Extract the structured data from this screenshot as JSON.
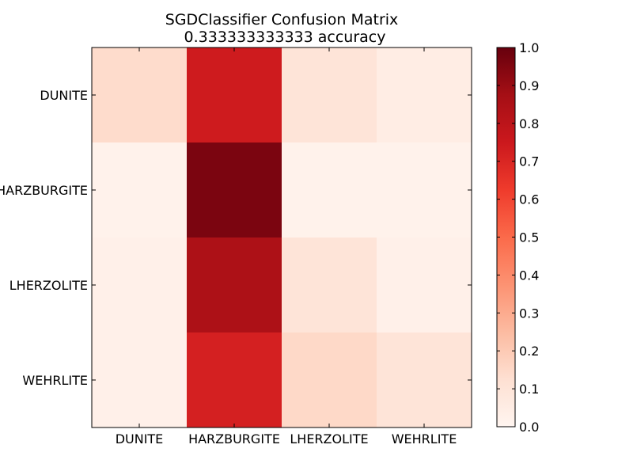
{
  "chart_data": {
    "type": "heatmap",
    "title": "SGDClassifier Confusion Matrix",
    "subtitle": "0.333333333333 accuracy",
    "row_labels": [
      "DUNITE",
      "HARZBURGITE",
      "LHERZOLITE",
      "WEHRLITE"
    ],
    "col_labels": [
      "DUNITE",
      "HARZBURGITE",
      "LHERZOLITE",
      "WEHRLITE"
    ],
    "values": [
      [
        0.14,
        0.74,
        0.1,
        0.05
      ],
      [
        0.02,
        0.96,
        0.02,
        0.02
      ],
      [
        0.03,
        0.85,
        0.1,
        0.03
      ],
      [
        0.03,
        0.72,
        0.15,
        0.1
      ]
    ],
    "colormap": "Reds",
    "colorbar": {
      "range": [
        0.0,
        1.0
      ],
      "ticks": [
        "0.0",
        "0.1",
        "0.2",
        "0.3",
        "0.4",
        "0.5",
        "0.6",
        "0.7",
        "0.8",
        "0.9",
        "1.0"
      ]
    },
    "grid": false
  }
}
